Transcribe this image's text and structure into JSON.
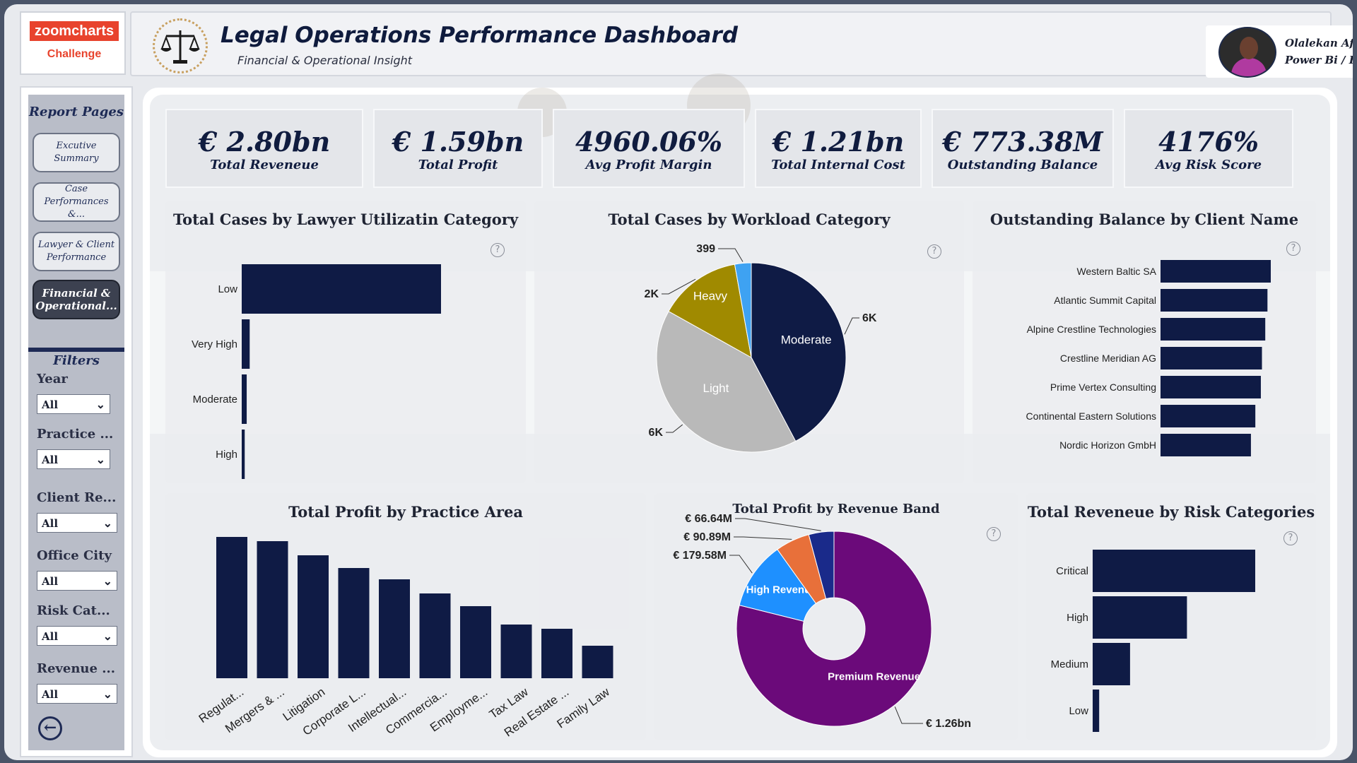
{
  "logo": {
    "top": "zoomcharts",
    "bottom": "Challenge"
  },
  "header": {
    "title": "Legal Operations Performance Dashboard",
    "subtitle": "Financial & Operational Insight"
  },
  "profile": {
    "name": "Olalekan Afolakemi",
    "role": "Power Bi / Excel Analyst"
  },
  "sidebar": {
    "heading": "Report Pages",
    "pages": [
      "Excutive Summary",
      "Case Performances &...",
      "Lawyer & Client Performance",
      "Financial & Operational..."
    ],
    "filters_heading": "Filters",
    "filters": [
      {
        "label": "Year",
        "value": "All"
      },
      {
        "label": "Practice ...",
        "value": "All"
      },
      {
        "label": "Client Re...",
        "value": "All"
      },
      {
        "label": "Office City",
        "value": "All"
      },
      {
        "label": "Risk Cat...",
        "value": "All"
      },
      {
        "label": "Revenue ...",
        "value": "All"
      }
    ]
  },
  "kpis": [
    {
      "value": "€ 2.80bn",
      "label": "Total Reveneue"
    },
    {
      "value": "€ 1.59bn",
      "label": "Total Profit"
    },
    {
      "value": "4960.06%",
      "label": "Avg Profit Margin"
    },
    {
      "value": "€ 1.21bn",
      "label": "Total Internal Cost"
    },
    {
      "value": "€ 773.38M",
      "label": "Outstanding Balance"
    },
    {
      "value": "4176%",
      "label": "Avg Risk Score"
    }
  ],
  "help_glyph": "?",
  "chart_data": [
    {
      "type": "bar",
      "orientation": "horizontal",
      "title": "Total Cases by Lawyer Utilizatin Category",
      "categories": [
        "Low",
        "Very High",
        "Moderate",
        "High"
      ],
      "values": [
        100,
        4,
        2.5,
        1.5
      ]
    },
    {
      "type": "pie",
      "title": "Total Cases by Workload Category",
      "slices": [
        {
          "label": "Moderate",
          "value": 6000,
          "display": "6K",
          "color": "#0f1b45"
        },
        {
          "label": "Light",
          "value": 5800,
          "display": "6K",
          "color": "#b9b9b9"
        },
        {
          "label": "Heavy",
          "value": 2000,
          "display": "2K",
          "color": "#a08a00"
        },
        {
          "label": "",
          "value": 399,
          "display": "399",
          "color": "#3ea2f2"
        }
      ]
    },
    {
      "type": "bar",
      "orientation": "horizontal",
      "title": "Outstanding Balance by Client Name",
      "categories": [
        "Western Baltic SA",
        "Atlantic Summit Capital",
        "Alpine Crestline Technologies",
        "Crestline Meridian AG",
        "Prime Vertex Consulting",
        "Continental Eastern Solutions",
        "Nordic Horizon GmbH"
      ],
      "values": [
        100,
        97,
        95,
        92,
        91,
        86,
        82
      ]
    },
    {
      "type": "bar",
      "title": "Total Profit by Practice Area",
      "categories": [
        "Regulat...",
        "Mergers & ...",
        "Litigation",
        "Corporate L...",
        "Intellectual...",
        "Commercia...",
        "Employme...",
        "Tax Law",
        "Real Estate ...",
        "Family Law"
      ],
      "values": [
        100,
        97,
        87,
        78,
        70,
        60,
        51,
        38,
        35,
        23
      ]
    },
    {
      "type": "pie",
      "donut": true,
      "title": "Total Profit by Revenue Band",
      "slices": [
        {
          "label": "Premium Revenue",
          "value": 1260,
          "display": "€ 1.26bn",
          "color": "#6b0a7a"
        },
        {
          "label": "High Revenue",
          "value": 179.58,
          "display": "€ 179.58M",
          "color": "#1e90ff"
        },
        {
          "label": "",
          "value": 90.89,
          "display": "€ 90.89M",
          "color": "#e8703a"
        },
        {
          "label": "",
          "value": 66.64,
          "display": "€ 66.64M",
          "color": "#1a2a8a"
        }
      ]
    },
    {
      "type": "bar",
      "orientation": "horizontal",
      "title": "Total Reveneue by Risk Categories",
      "categories": [
        "Critical",
        "High",
        "Medium",
        "Low"
      ],
      "values": [
        100,
        58,
        23,
        4
      ]
    }
  ]
}
